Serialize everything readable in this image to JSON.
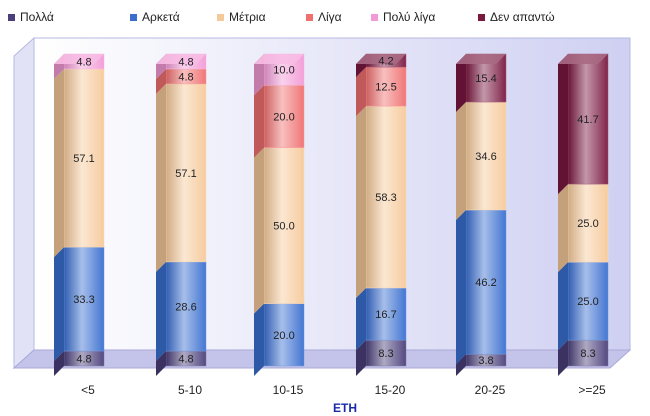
{
  "chart_data": {
    "type": "bar",
    "stacked": true,
    "percent": true,
    "xlabel": "ΕΤΗ",
    "ylabel": "",
    "ylim": [
      0,
      100
    ],
    "legend_position": "top",
    "categories": [
      "<5",
      "5-10",
      "10-15",
      "15-20",
      "20-25",
      ">=25"
    ],
    "series": [
      {
        "name": "Πολλά",
        "color": "#4a3f7a",
        "values": [
          4.8,
          4.8,
          0,
          8.3,
          3.8,
          8.3
        ]
      },
      {
        "name": "Αρκετά",
        "color": "#3a6fd0",
        "values": [
          33.3,
          28.6,
          20.0,
          16.7,
          46.2,
          25.0
        ]
      },
      {
        "name": "Μέτρια",
        "color": "#f5c99a",
        "values": [
          57.1,
          57.1,
          50.0,
          58.3,
          34.6,
          25.0
        ]
      },
      {
        "name": "Λίγα",
        "color": "#f07070",
        "values": [
          0,
          4.8,
          20.0,
          12.5,
          0,
          0
        ]
      },
      {
        "name": "Πολύ λίγα",
        "color": "#f29ad6",
        "values": [
          4.8,
          4.8,
          10.0,
          0,
          0,
          0
        ]
      },
      {
        "name": "Δεν απαντώ",
        "color": "#7a1840",
        "values": [
          0,
          0,
          0,
          4.2,
          15.4,
          41.7
        ]
      }
    ]
  }
}
